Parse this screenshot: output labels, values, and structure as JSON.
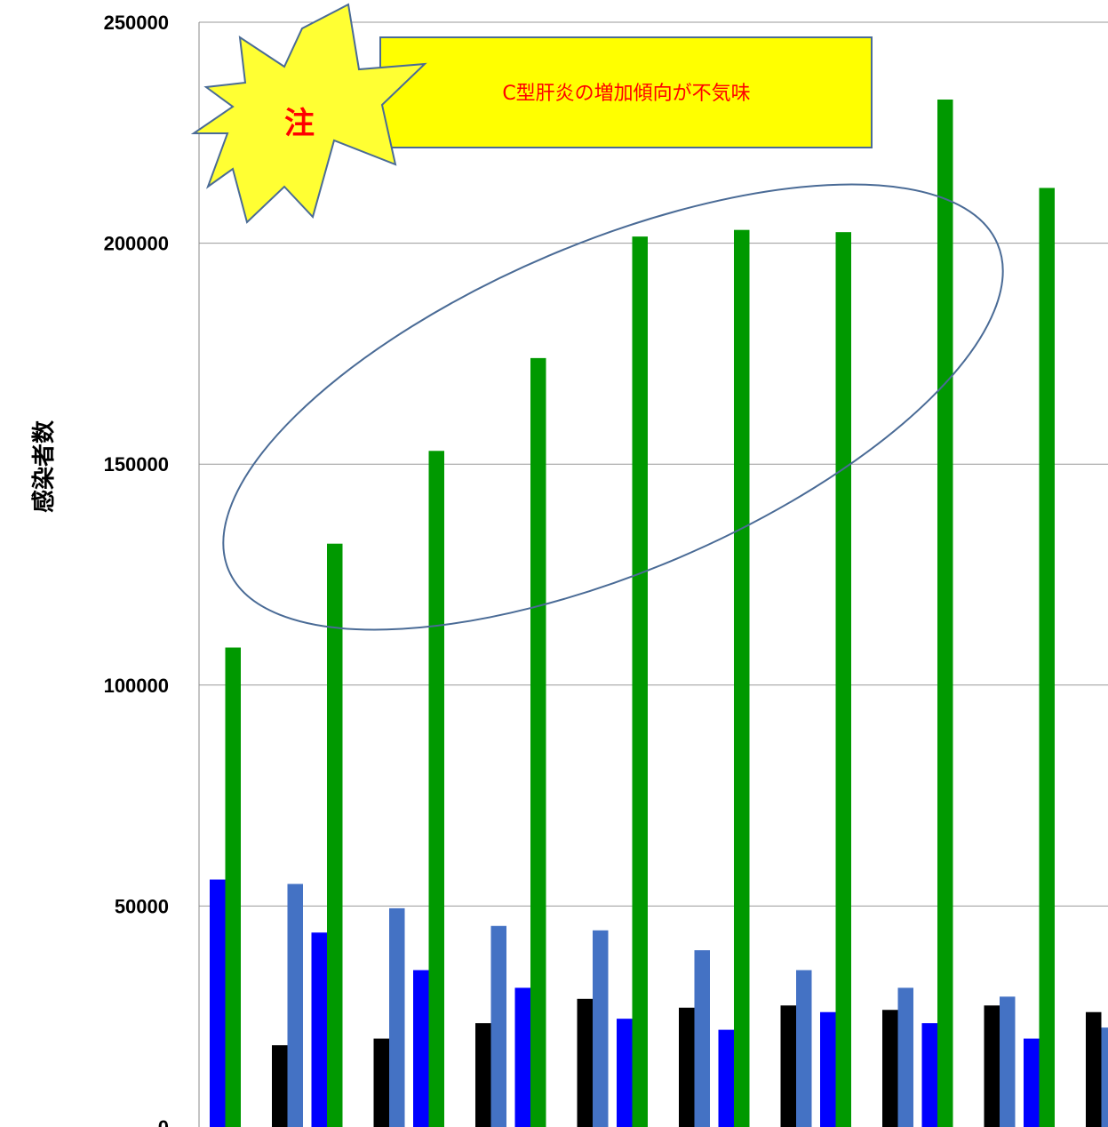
{
  "chart_data": {
    "type": "bar",
    "title": "",
    "xlabel": "",
    "ylabel": "感染者数",
    "ylim": [
      0,
      250000
    ],
    "yticks": [
      0,
      50000,
      100000,
      150000,
      200000,
      250000
    ],
    "ytick_labels": [
      "0",
      "50000",
      "100000",
      "150000",
      "200000",
      "250000"
    ],
    "grid": true,
    "groups": 9,
    "series": [
      {
        "color": "#0000ff",
        "values": [
          56000,
          44000,
          35500,
          31500,
          24500,
          22000,
          26000,
          23500,
          20000
        ]
      },
      {
        "color": "#009900",
        "values": [
          108500,
          132000,
          153000,
          174000,
          201500,
          203000,
          202500,
          232500,
          212500
        ]
      },
      {
        "color": "#000000",
        "values": [
          18500,
          20000,
          23500,
          29000,
          27000,
          27500,
          26500,
          27500,
          26000
        ]
      },
      {
        "color": "#4472c4",
        "values": [
          55000,
          49500,
          45500,
          44500,
          40000,
          35500,
          31500,
          29500,
          22500
        ]
      }
    ]
  },
  "annotation": {
    "callout_text": "C型肝炎の増加傾向が不気味",
    "burst_text": "注",
    "callout_fill": "#ffff00",
    "burst_fill": "#ffff33"
  }
}
